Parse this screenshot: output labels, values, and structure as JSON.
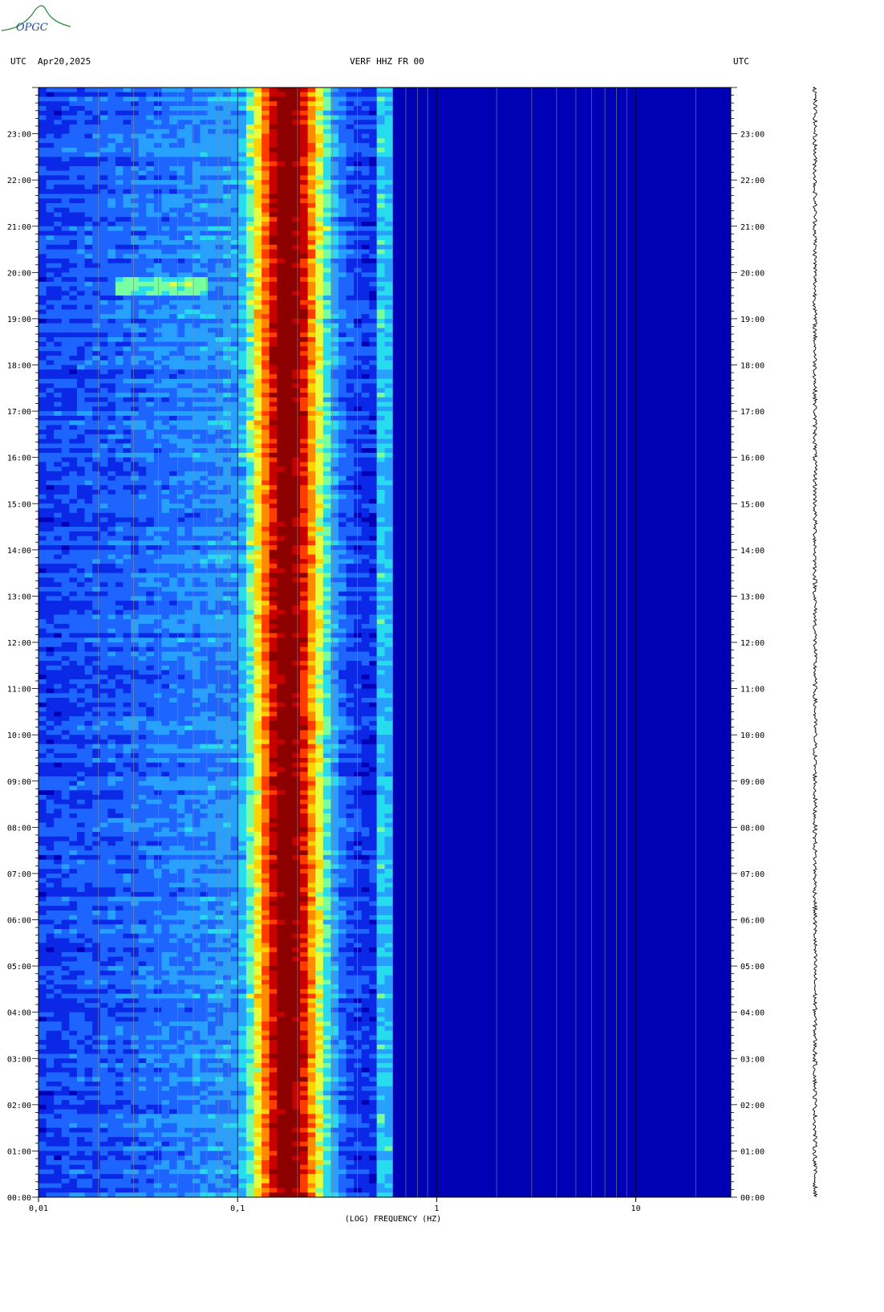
{
  "logo_text": "OPGC",
  "header": {
    "left_utc": "UTC",
    "date": "Apr20,2025",
    "station": "VERF HHZ FR 00",
    "right_utc": "UTC"
  },
  "colors": {
    "background_low": "#0000b4",
    "scale": [
      "#0000b4",
      "#0a28e6",
      "#1e64ff",
      "#28a0ff",
      "#28dcf0",
      "#78ffa0",
      "#e6ff3c",
      "#ffd200",
      "#ff8c00",
      "#ff3c00",
      "#c80000",
      "#8c0000"
    ]
  },
  "chart_data": {
    "type": "heatmap",
    "title": "VERF HHZ FR 00",
    "xlabel": "(LOG) FREQUENCY (HZ)",
    "ylabel": "",
    "x_scale": "log",
    "xlim": [
      0.01,
      30
    ],
    "x_ticks": [
      {
        "value": 0.01,
        "label": "0,01"
      },
      {
        "value": 0.1,
        "label": "0,1"
      },
      {
        "value": 1,
        "label": "1"
      },
      {
        "value": 10,
        "label": "10"
      }
    ],
    "y_ticks": [
      "00:00",
      "01:00",
      "02:00",
      "03:00",
      "04:00",
      "05:00",
      "06:00",
      "07:00",
      "08:00",
      "09:00",
      "10:00",
      "11:00",
      "12:00",
      "13:00",
      "14:00",
      "15:00",
      "16:00",
      "17:00",
      "18:00",
      "19:00",
      "20:00",
      "21:00",
      "22:00",
      "23:00"
    ],
    "ylim_hours": [
      0,
      24
    ],
    "spectral_peak_hz": [
      0.13,
      0.35
    ],
    "microseism_band_hz": [
      0.1,
      0.6
    ],
    "transient_event": {
      "freq_hz": [
        0.025,
        0.07
      ],
      "hour": 19.7
    }
  }
}
